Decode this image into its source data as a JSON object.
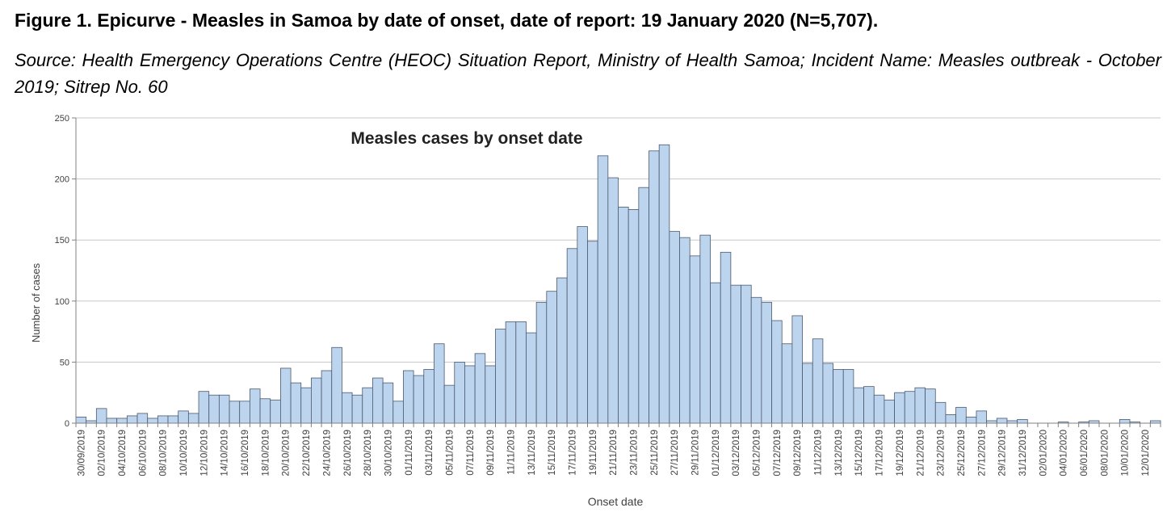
{
  "figure": {
    "title": "Figure 1. Epicurve - Measles in Samoa by date of onset, date of report: 19 January 2020 (N=5,707).",
    "source": "Source: Health Emergency Operations Centre (HEOC) Situation Report, Ministry of Health Samoa; Incident Name: Measles outbreak - October 2019; Sitrep No. 60"
  },
  "colors": {
    "bar_fill": "#bdd4ee",
    "bar_stroke": "#4a5a6e",
    "grid": "#c8c8c8",
    "axis": "#808080",
    "text": "#404040"
  },
  "chart_data": {
    "type": "bar",
    "title": "Measles cases by onset date",
    "xlabel": "Onset date",
    "ylabel": "Number of cases",
    "ylim": [
      0,
      250
    ],
    "yticks": [
      0,
      50,
      100,
      150,
      200,
      250
    ],
    "grid": true,
    "legend": "none",
    "start_date": "2019-09-30",
    "tick_every": 2,
    "tick_labels": [
      "30/09/2019",
      "02/10/2019",
      "04/10/2019",
      "06/10/2019",
      "08/10/2019",
      "10/10/2019",
      "12/10/2019",
      "14/10/2019",
      "16/10/2019",
      "18/10/2019",
      "20/10/2019",
      "22/10/2019",
      "24/10/2019",
      "26/10/2019",
      "28/10/2019",
      "30/10/2019",
      "01/11/2019",
      "03/11/2019",
      "05/11/2019",
      "07/11/2019",
      "09/11/2019",
      "11/11/2019",
      "13/11/2019",
      "15/11/2019",
      "17/11/2019",
      "19/11/2019",
      "21/11/2019",
      "23/11/2019",
      "25/11/2019",
      "27/11/2019",
      "29/11/2019",
      "01/12/2019",
      "03/12/2019",
      "05/12/2019",
      "07/12/2019",
      "09/12/2019",
      "11/12/2019",
      "13/12/2019",
      "15/12/2019",
      "17/12/2019",
      "19/12/2019",
      "21/12/2019",
      "23/12/2019",
      "25/12/2019",
      "27/12/2019",
      "29/12/2019",
      "31/12/2019",
      "02/01/2020",
      "04/01/2020",
      "06/01/2020",
      "08/01/2020",
      "10/01/2020",
      "12/01/2020"
    ],
    "values": [
      5,
      2,
      12,
      4,
      4,
      6,
      8,
      4,
      6,
      6,
      10,
      8,
      26,
      23,
      23,
      18,
      18,
      28,
      20,
      19,
      45,
      33,
      29,
      37,
      43,
      62,
      25,
      23,
      29,
      37,
      33,
      18,
      43,
      39,
      44,
      65,
      31,
      50,
      47,
      57,
      47,
      77,
      83,
      83,
      74,
      99,
      108,
      119,
      143,
      161,
      149,
      219,
      201,
      177,
      175,
      193,
      223,
      228,
      157,
      152,
      137,
      154,
      115,
      140,
      113,
      113,
      103,
      99,
      84,
      65,
      88,
      49,
      69,
      49,
      44,
      44,
      29,
      30,
      23,
      19,
      25,
      26,
      29,
      28,
      17,
      7,
      13,
      5,
      10,
      2,
      4,
      2,
      3,
      0,
      0,
      0,
      1,
      0,
      1,
      2,
      0,
      0,
      3,
      1,
      0,
      2
    ]
  }
}
